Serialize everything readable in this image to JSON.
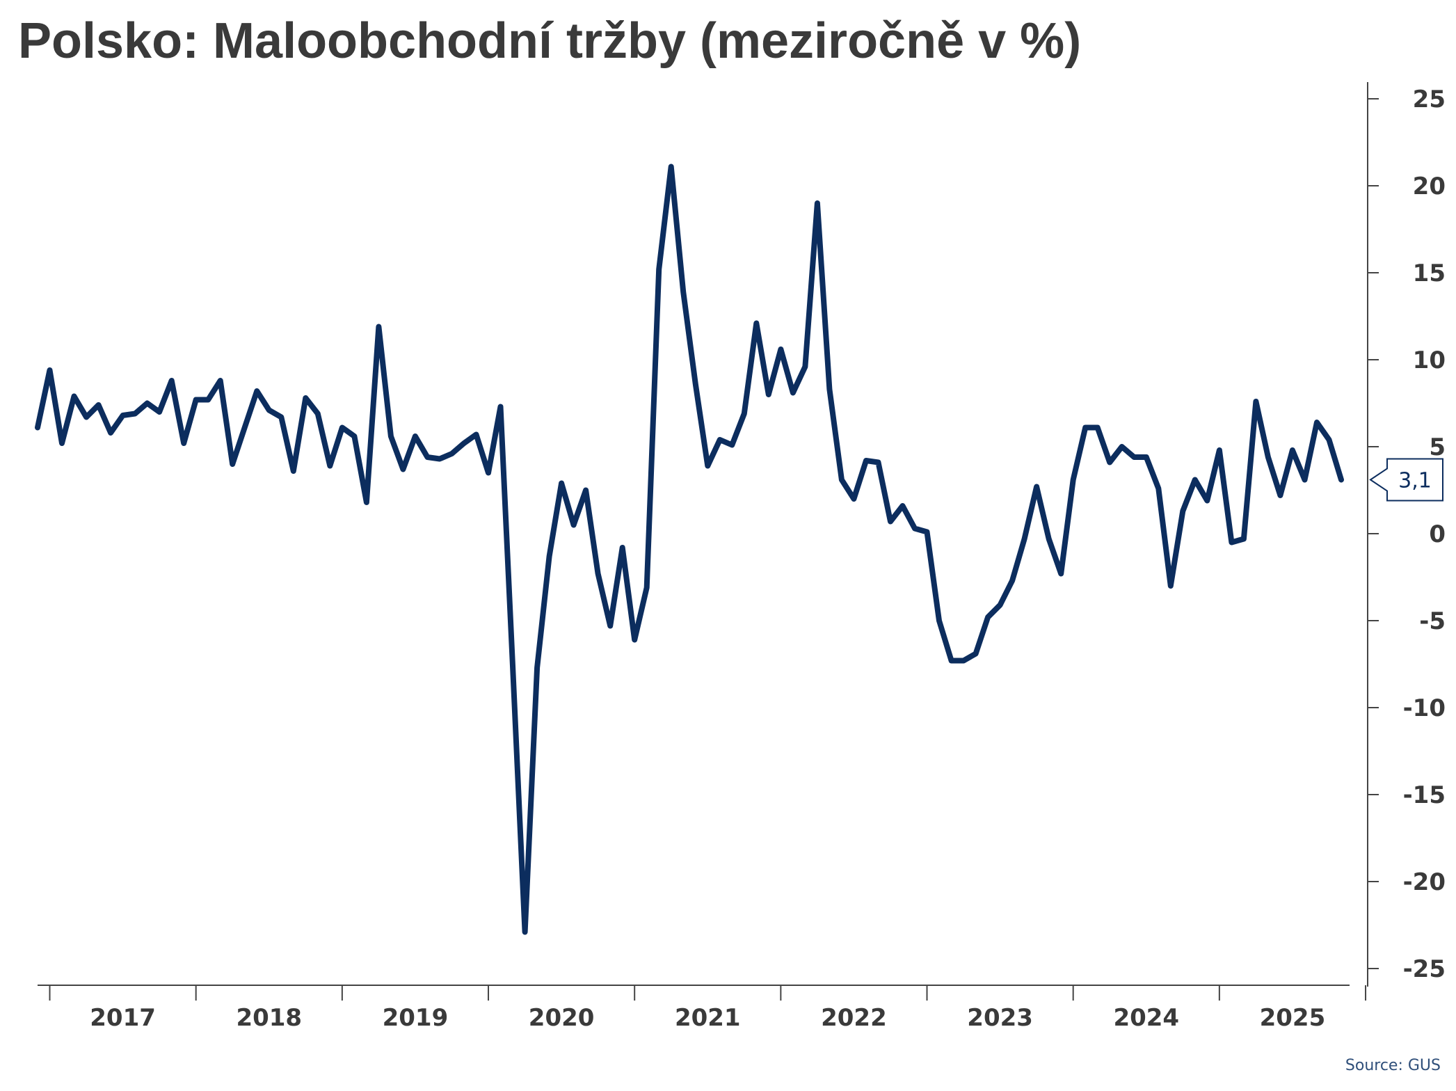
{
  "chart_data": {
    "type": "line",
    "title": "Polsko: Maloobchodní tržby (meziročně v %)",
    "source": "Source: GUS",
    "xlabel": "",
    "ylabel": "",
    "ylim": [
      -25,
      25
    ],
    "yticks": [
      25,
      20,
      15,
      10,
      5,
      0,
      -5,
      -10,
      -15,
      -20,
      -25
    ],
    "y_axis_position": "right",
    "grid": false,
    "year_labels": [
      "2017",
      "2018",
      "2019",
      "2020",
      "2021",
      "2022",
      "2023",
      "2024",
      "2025"
    ],
    "x_start": "2016-12",
    "series": [
      {
        "color": "#0c2d5e",
        "values": [
          6.1,
          9.4,
          5.2,
          7.9,
          6.7,
          7.4,
          5.8,
          6.8,
          6.9,
          7.5,
          7.0,
          8.8,
          5.2,
          7.7,
          7.7,
          8.8,
          4.0,
          6.1,
          8.2,
          7.1,
          6.7,
          3.6,
          7.8,
          6.9,
          3.9,
          6.1,
          5.6,
          1.8,
          11.9,
          5.6,
          3.7,
          5.6,
          4.4,
          4.3,
          4.6,
          5.2,
          5.7,
          3.5,
          7.3,
          -7.6,
          -22.9,
          -7.7,
          -1.3,
          2.9,
          0.5,
          2.5,
          -2.3,
          -5.3,
          -0.8,
          -6.1,
          -3.1,
          15.2,
          21.1,
          13.9,
          8.6,
          3.9,
          5.4,
          5.1,
          6.9,
          12.1,
          8.0,
          10.6,
          8.1,
          9.6,
          19.0,
          8.3,
          3.1,
          2.0,
          4.2,
          4.1,
          0.7,
          1.6,
          0.3,
          0.1,
          -5.0,
          -7.3,
          -7.3,
          -6.9,
          -4.8,
          -4.1,
          -2.7,
          -0.3,
          2.7,
          -0.3,
          -2.3,
          3.1,
          6.1,
          6.1,
          4.1,
          5.0,
          4.4,
          4.4,
          2.6,
          -3.0,
          1.3,
          3.1,
          1.9,
          4.8,
          -0.5,
          -0.3,
          7.6,
          4.4,
          2.2,
          4.8,
          3.1,
          6.4,
          5.4,
          3.1
        ]
      }
    ],
    "last_value_label": "3,1"
  }
}
